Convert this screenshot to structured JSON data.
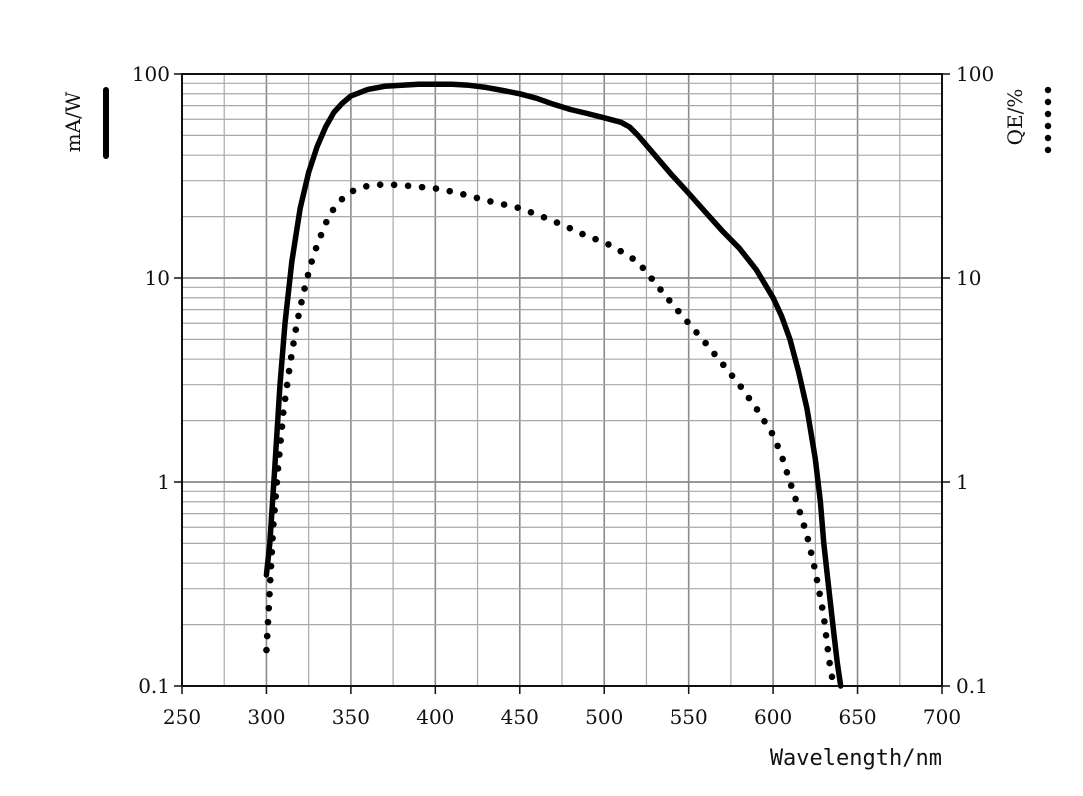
{
  "chart_data": {
    "type": "line",
    "xlabel": "Wavelength/nm",
    "ylabel_left": "mA/W",
    "ylabel_right": "QE/%",
    "xlim": [
      250,
      700
    ],
    "ylim": [
      0.1,
      100
    ],
    "y_scale": "log",
    "grid": true,
    "x_ticks": [
      "250",
      "300",
      "350",
      "400",
      "450",
      "500",
      "550",
      "600",
      "650",
      "700"
    ],
    "y_ticks_left": [
      "0.1",
      "1",
      "10",
      "100"
    ],
    "y_ticks_right": [
      "0.1",
      "1",
      "10",
      "100"
    ],
    "legend": "vertical markers beside axis labels: solid line = mA/W (left), dotted = QE/% (right)",
    "series": [
      {
        "name": "mA/W",
        "style": "solid",
        "x": [
          300,
          302,
          305,
          308,
          311,
          315,
          320,
          325,
          330,
          335,
          340,
          345,
          350,
          360,
          370,
          380,
          390,
          400,
          410,
          420,
          430,
          440,
          450,
          460,
          470,
          480,
          490,
          500,
          510,
          515,
          520,
          530,
          540,
          550,
          560,
          570,
          580,
          590,
          600,
          605,
          610,
          615,
          620,
          625,
          628,
          630,
          633,
          636,
          638,
          640
        ],
        "y": [
          0.35,
          0.5,
          1.2,
          3.0,
          6.0,
          12,
          22,
          33,
          44,
          55,
          65,
          72,
          78,
          84,
          87,
          88,
          89,
          89,
          89,
          88,
          86,
          83,
          80,
          76,
          71,
          67,
          64,
          61,
          58,
          55,
          50,
          40,
          32,
          26,
          21,
          17,
          14,
          11,
          8,
          6.5,
          5.0,
          3.5,
          2.3,
          1.3,
          0.8,
          0.5,
          0.3,
          0.18,
          0.13,
          0.1
        ]
      },
      {
        "name": "QE/%",
        "style": "dotted",
        "x": [
          300,
          302,
          304,
          307,
          310,
          314,
          318,
          322,
          326,
          330,
          335,
          340,
          345,
          350,
          360,
          370,
          380,
          390,
          400,
          410,
          420,
          430,
          440,
          450,
          460,
          470,
          480,
          490,
          500,
          510,
          520,
          530,
          540,
          550,
          560,
          570,
          580,
          590,
          600,
          605,
          610,
          615,
          620,
          624,
          627,
          630,
          632,
          634,
          636
        ],
        "y": [
          0.15,
          0.3,
          0.6,
          1.2,
          2.2,
          3.8,
          6,
          8.5,
          11.5,
          14.5,
          18.5,
          22,
          24.5,
          26.5,
          28.3,
          28.8,
          28.5,
          28.0,
          27.5,
          26.5,
          25.3,
          24,
          23,
          22,
          20.5,
          19,
          17.5,
          16,
          15,
          13.5,
          12,
          9.5,
          7.5,
          6,
          4.8,
          3.8,
          3,
          2.3,
          1.7,
          1.35,
          1.0,
          0.75,
          0.55,
          0.4,
          0.3,
          0.22,
          0.16,
          0.12,
          0.1
        ]
      }
    ]
  }
}
